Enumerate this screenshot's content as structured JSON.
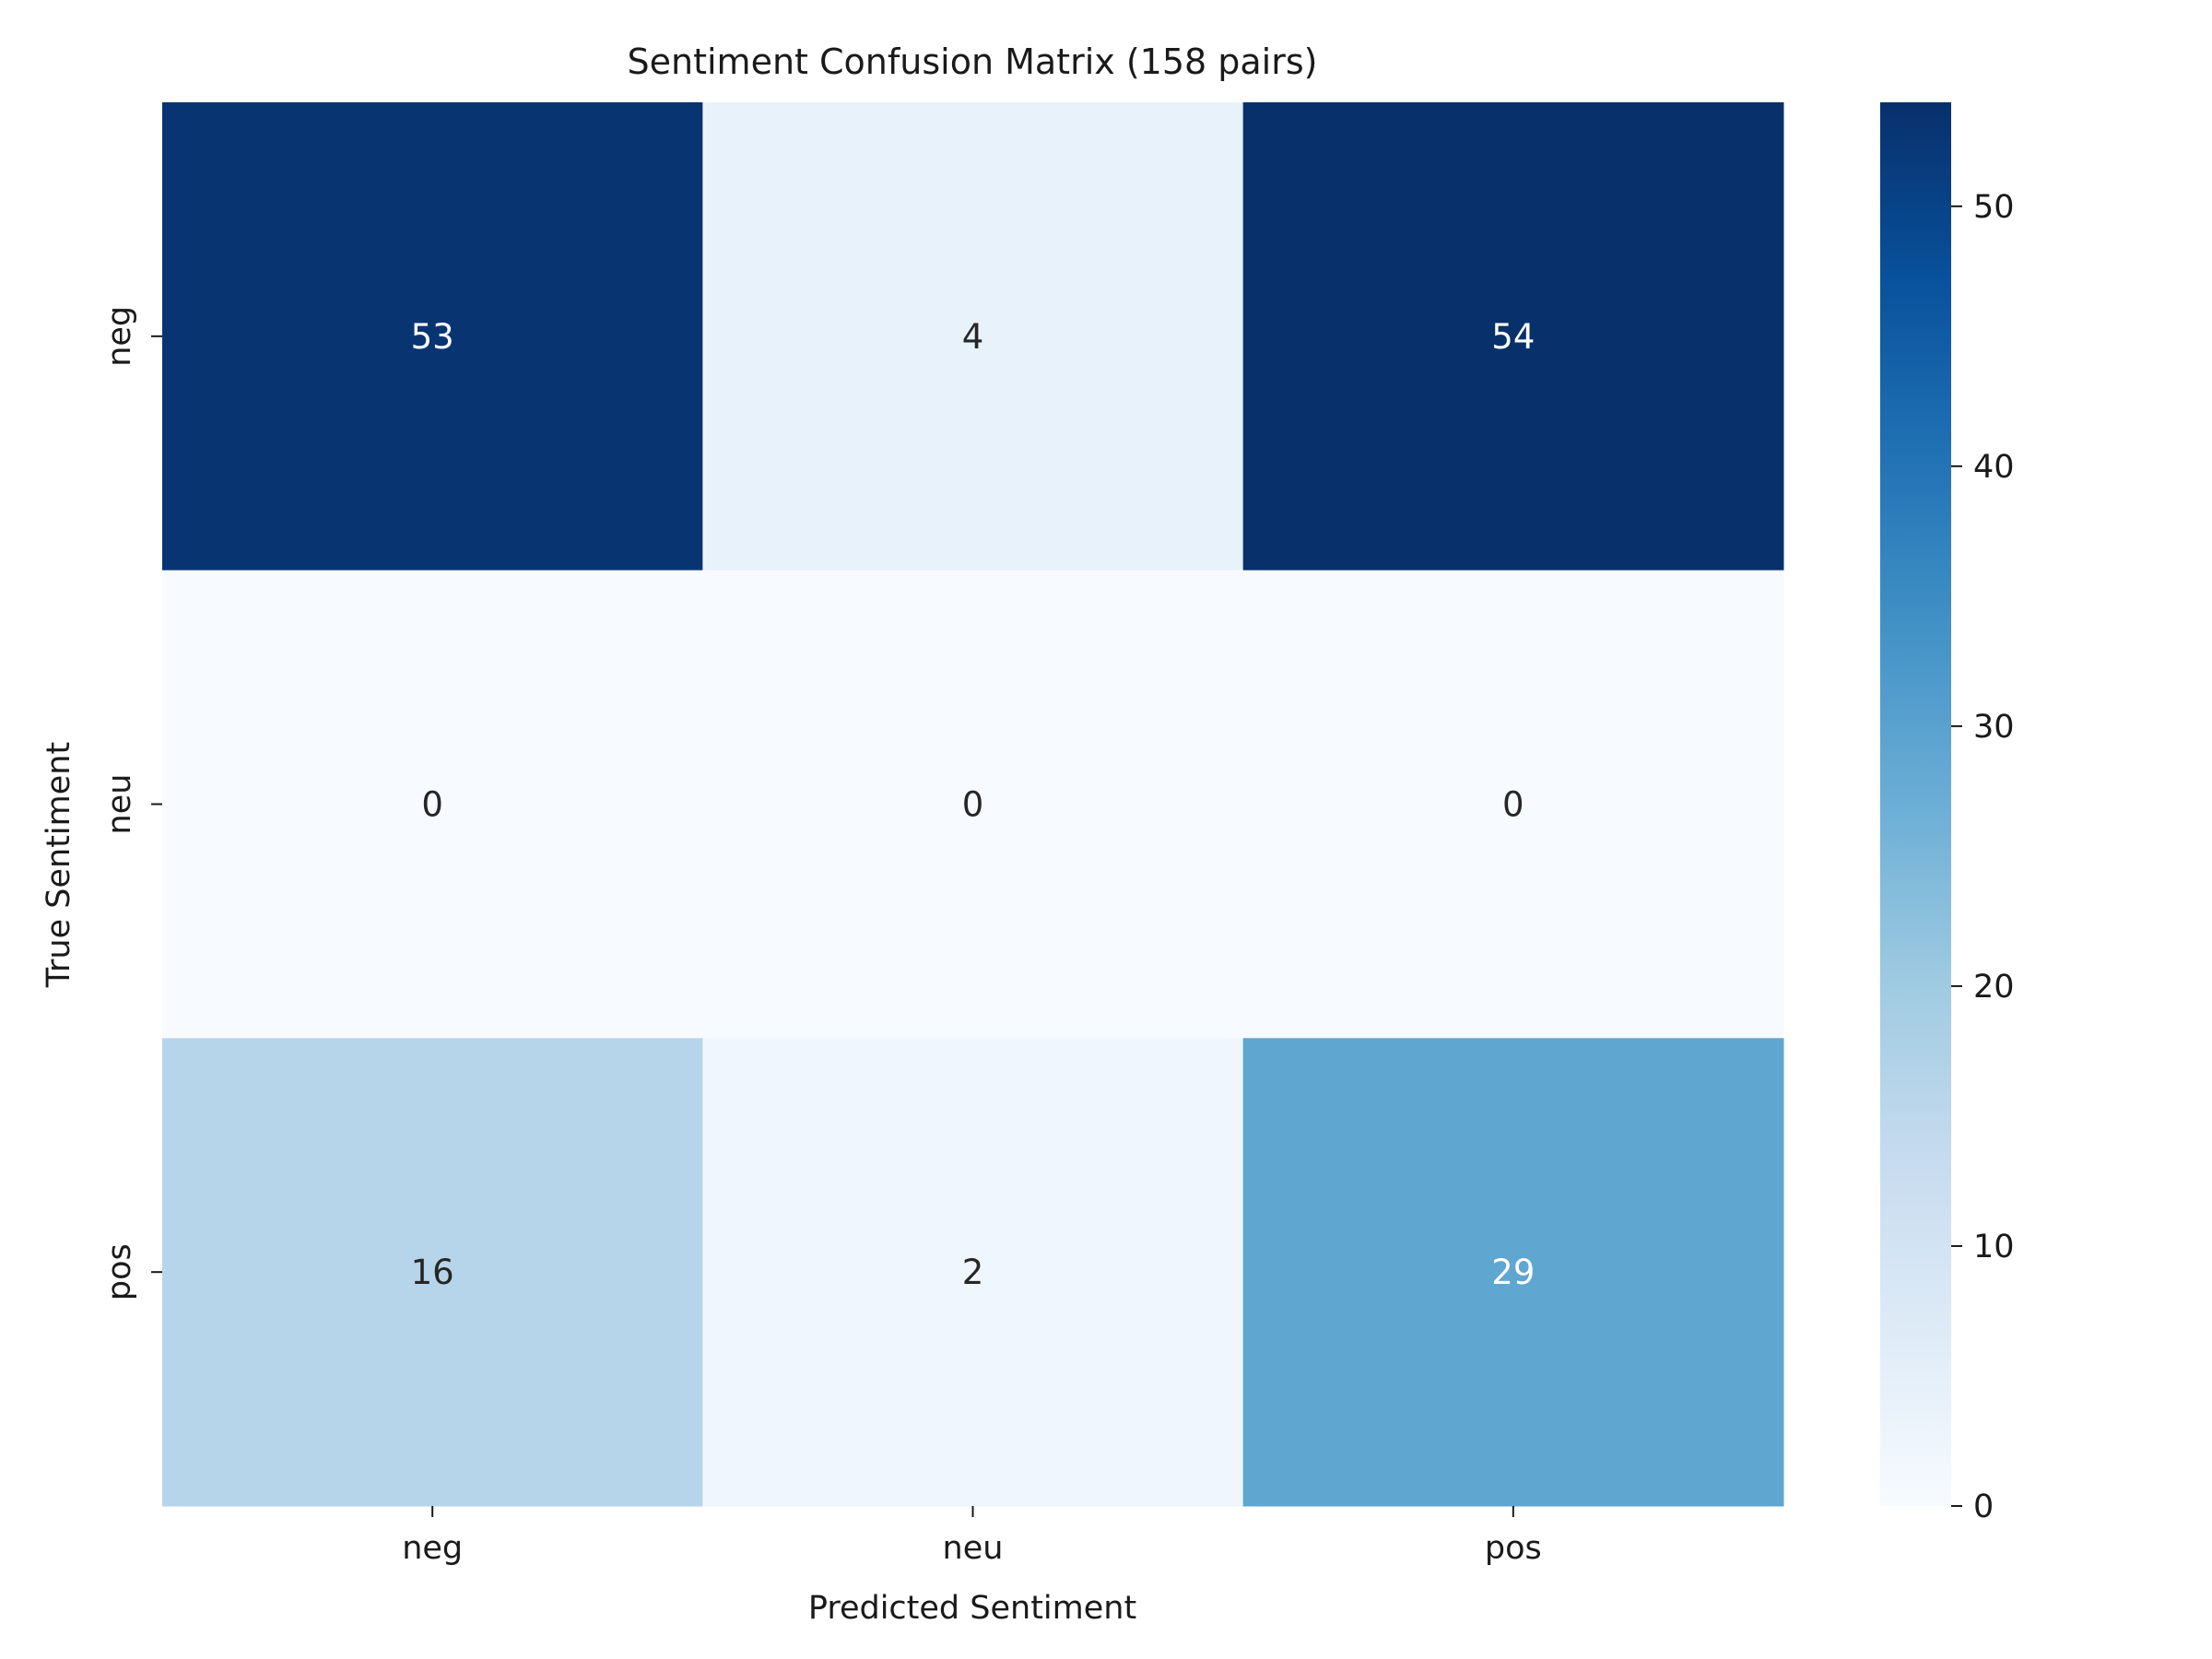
{
  "chart_data": {
    "type": "heatmap",
    "title": "Sentiment Confusion Matrix (158 pairs)",
    "xlabel": "Predicted Sentiment",
    "ylabel": "True Sentiment",
    "x_categories": [
      "neg",
      "neu",
      "pos"
    ],
    "y_categories": [
      "neg",
      "neu",
      "pos"
    ],
    "values": [
      [
        53,
        4,
        54
      ],
      [
        0,
        0,
        0
      ],
      [
        16,
        2,
        29
      ]
    ],
    "colorbar": {
      "min": 0,
      "max": 54,
      "ticks": [
        0,
        10,
        20,
        30,
        40,
        50
      ],
      "colormap": "Blues"
    },
    "grid": false
  }
}
